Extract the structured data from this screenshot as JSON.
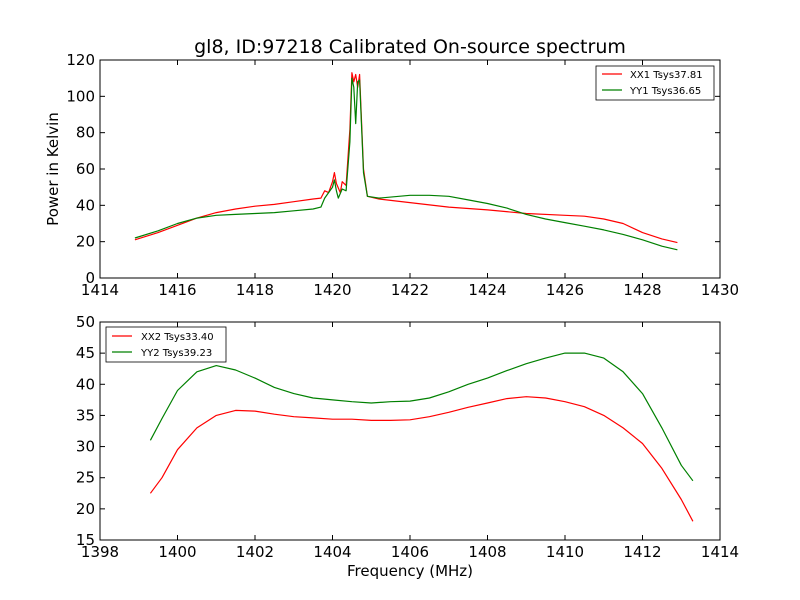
{
  "title": "gl8, ID:97218 Calibrated On-source spectrum",
  "chart_data": [
    {
      "type": "line",
      "ylabel": "Power in Kelvin",
      "xlabel": "",
      "xlim": [
        1414,
        1430
      ],
      "ylim": [
        0,
        120
      ],
      "xticks": [
        "1414",
        "1416",
        "1418",
        "1420",
        "1422",
        "1424",
        "1426",
        "1428",
        "1430"
      ],
      "yticks": [
        "0",
        "20",
        "40",
        "60",
        "80",
        "100",
        "120"
      ],
      "legend_position": "top-right",
      "grid": false,
      "series": [
        {
          "name": "XX1 Tsys37.81",
          "color": "#ff0000",
          "points": [
            [
              1414.9,
              21
            ],
            [
              1415.5,
              25
            ],
            [
              1416,
              29
            ],
            [
              1416.5,
              33
            ],
            [
              1417,
              36
            ],
            [
              1417.5,
              38
            ],
            [
              1418,
              39.5
            ],
            [
              1418.5,
              40.5
            ],
            [
              1419,
              42
            ],
            [
              1419.5,
              43.5
            ],
            [
              1419.7,
              44
            ],
            [
              1419.8,
              48
            ],
            [
              1419.9,
              47
            ],
            [
              1420.0,
              53
            ],
            [
              1420.05,
              58
            ],
            [
              1420.1,
              52
            ],
            [
              1420.2,
              47
            ],
            [
              1420.25,
              53
            ],
            [
              1420.35,
              51
            ],
            [
              1420.45,
              82
            ],
            [
              1420.5,
              113
            ],
            [
              1420.55,
              108
            ],
            [
              1420.6,
              112
            ],
            [
              1420.65,
              105
            ],
            [
              1420.7,
              112
            ],
            [
              1420.8,
              60
            ],
            [
              1420.9,
              45
            ],
            [
              1421.2,
              43.5
            ],
            [
              1422,
              41.5
            ],
            [
              1423,
              39
            ],
            [
              1424,
              37.5
            ],
            [
              1425,
              35.5
            ],
            [
              1426,
              34.5
            ],
            [
              1426.5,
              34
            ],
            [
              1427,
              32.5
            ],
            [
              1427.5,
              30
            ],
            [
              1428,
              25
            ],
            [
              1428.5,
              21.5
            ],
            [
              1428.9,
              19.5
            ]
          ]
        },
        {
          "name": "YY1 Tsys36.65",
          "color": "#008000",
          "points": [
            [
              1414.9,
              22
            ],
            [
              1415.5,
              26
            ],
            [
              1416,
              30
            ],
            [
              1416.5,
              33
            ],
            [
              1417,
              34.5
            ],
            [
              1417.5,
              35
            ],
            [
              1418,
              35.5
            ],
            [
              1418.5,
              36
            ],
            [
              1419,
              37
            ],
            [
              1419.5,
              38
            ],
            [
              1419.7,
              39
            ],
            [
              1419.8,
              44
            ],
            [
              1419.9,
              47
            ],
            [
              1420.0,
              50
            ],
            [
              1420.05,
              54
            ],
            [
              1420.1,
              48
            ],
            [
              1420.15,
              44
            ],
            [
              1420.25,
              49
            ],
            [
              1420.35,
              48
            ],
            [
              1420.45,
              75
            ],
            [
              1420.5,
              110
            ],
            [
              1420.55,
              105
            ],
            [
              1420.6,
              85
            ],
            [
              1420.65,
              108
            ],
            [
              1420.7,
              109
            ],
            [
              1420.8,
              58
            ],
            [
              1420.9,
              45
            ],
            [
              1421.2,
              44
            ],
            [
              1422,
              45.5
            ],
            [
              1422.5,
              45.5
            ],
            [
              1423,
              45
            ],
            [
              1423.5,
              43
            ],
            [
              1424,
              41
            ],
            [
              1424.5,
              38.5
            ],
            [
              1425,
              35
            ],
            [
              1425.5,
              32.5
            ],
            [
              1426,
              30.5
            ],
            [
              1426.5,
              28.5
            ],
            [
              1427,
              26.5
            ],
            [
              1427.5,
              24
            ],
            [
              1428,
              21
            ],
            [
              1428.5,
              17.5
            ],
            [
              1428.9,
              15.5
            ]
          ]
        }
      ]
    },
    {
      "type": "line",
      "ylabel": "",
      "xlabel": "Frequency (MHz)",
      "xlim": [
        1398,
        1414
      ],
      "ylim": [
        15,
        50
      ],
      "xticks": [
        "1398",
        "1400",
        "1402",
        "1404",
        "1406",
        "1408",
        "1410",
        "1412",
        "1414"
      ],
      "yticks": [
        "15",
        "20",
        "25",
        "30",
        "35",
        "40",
        "45",
        "50"
      ],
      "legend_position": "top-left",
      "grid": false,
      "series": [
        {
          "name": "XX2 Tsys33.40",
          "color": "#ff0000",
          "points": [
            [
              1399.3,
              22.5
            ],
            [
              1399.6,
              25
            ],
            [
              1400,
              29.5
            ],
            [
              1400.5,
              33
            ],
            [
              1401,
              35
            ],
            [
              1401.5,
              35.8
            ],
            [
              1402,
              35.7
            ],
            [
              1402.5,
              35.2
            ],
            [
              1403,
              34.8
            ],
            [
              1403.5,
              34.6
            ],
            [
              1404,
              34.4
            ],
            [
              1404.5,
              34.4
            ],
            [
              1405,
              34.2
            ],
            [
              1405.5,
              34.2
            ],
            [
              1406,
              34.3
            ],
            [
              1406.5,
              34.8
            ],
            [
              1407,
              35.5
            ],
            [
              1407.5,
              36.3
            ],
            [
              1408,
              37
            ],
            [
              1408.5,
              37.7
            ],
            [
              1409,
              38
            ],
            [
              1409.5,
              37.8
            ],
            [
              1410,
              37.2
            ],
            [
              1410.5,
              36.4
            ],
            [
              1411,
              35
            ],
            [
              1411.5,
              33
            ],
            [
              1412,
              30.5
            ],
            [
              1412.5,
              26.5
            ],
            [
              1413,
              21.5
            ],
            [
              1413.3,
              18
            ]
          ]
        },
        {
          "name": "YY2 Tsys39.23",
          "color": "#008000",
          "points": [
            [
              1399.3,
              31
            ],
            [
              1399.6,
              34.5
            ],
            [
              1400,
              39
            ],
            [
              1400.5,
              42
            ],
            [
              1401,
              43
            ],
            [
              1401.5,
              42.3
            ],
            [
              1402,
              41
            ],
            [
              1402.5,
              39.5
            ],
            [
              1403,
              38.5
            ],
            [
              1403.5,
              37.8
            ],
            [
              1404,
              37.5
            ],
            [
              1404.5,
              37.2
            ],
            [
              1405,
              37
            ],
            [
              1405.5,
              37.2
            ],
            [
              1406,
              37.3
            ],
            [
              1406.5,
              37.8
            ],
            [
              1407,
              38.8
            ],
            [
              1407.5,
              40
            ],
            [
              1408,
              41
            ],
            [
              1408.5,
              42.2
            ],
            [
              1409,
              43.3
            ],
            [
              1409.5,
              44.2
            ],
            [
              1410,
              45
            ],
            [
              1410.5,
              45
            ],
            [
              1411,
              44.2
            ],
            [
              1411.5,
              42
            ],
            [
              1412,
              38.5
            ],
            [
              1412.5,
              33
            ],
            [
              1413,
              27
            ],
            [
              1413.3,
              24.5
            ]
          ]
        }
      ]
    }
  ]
}
